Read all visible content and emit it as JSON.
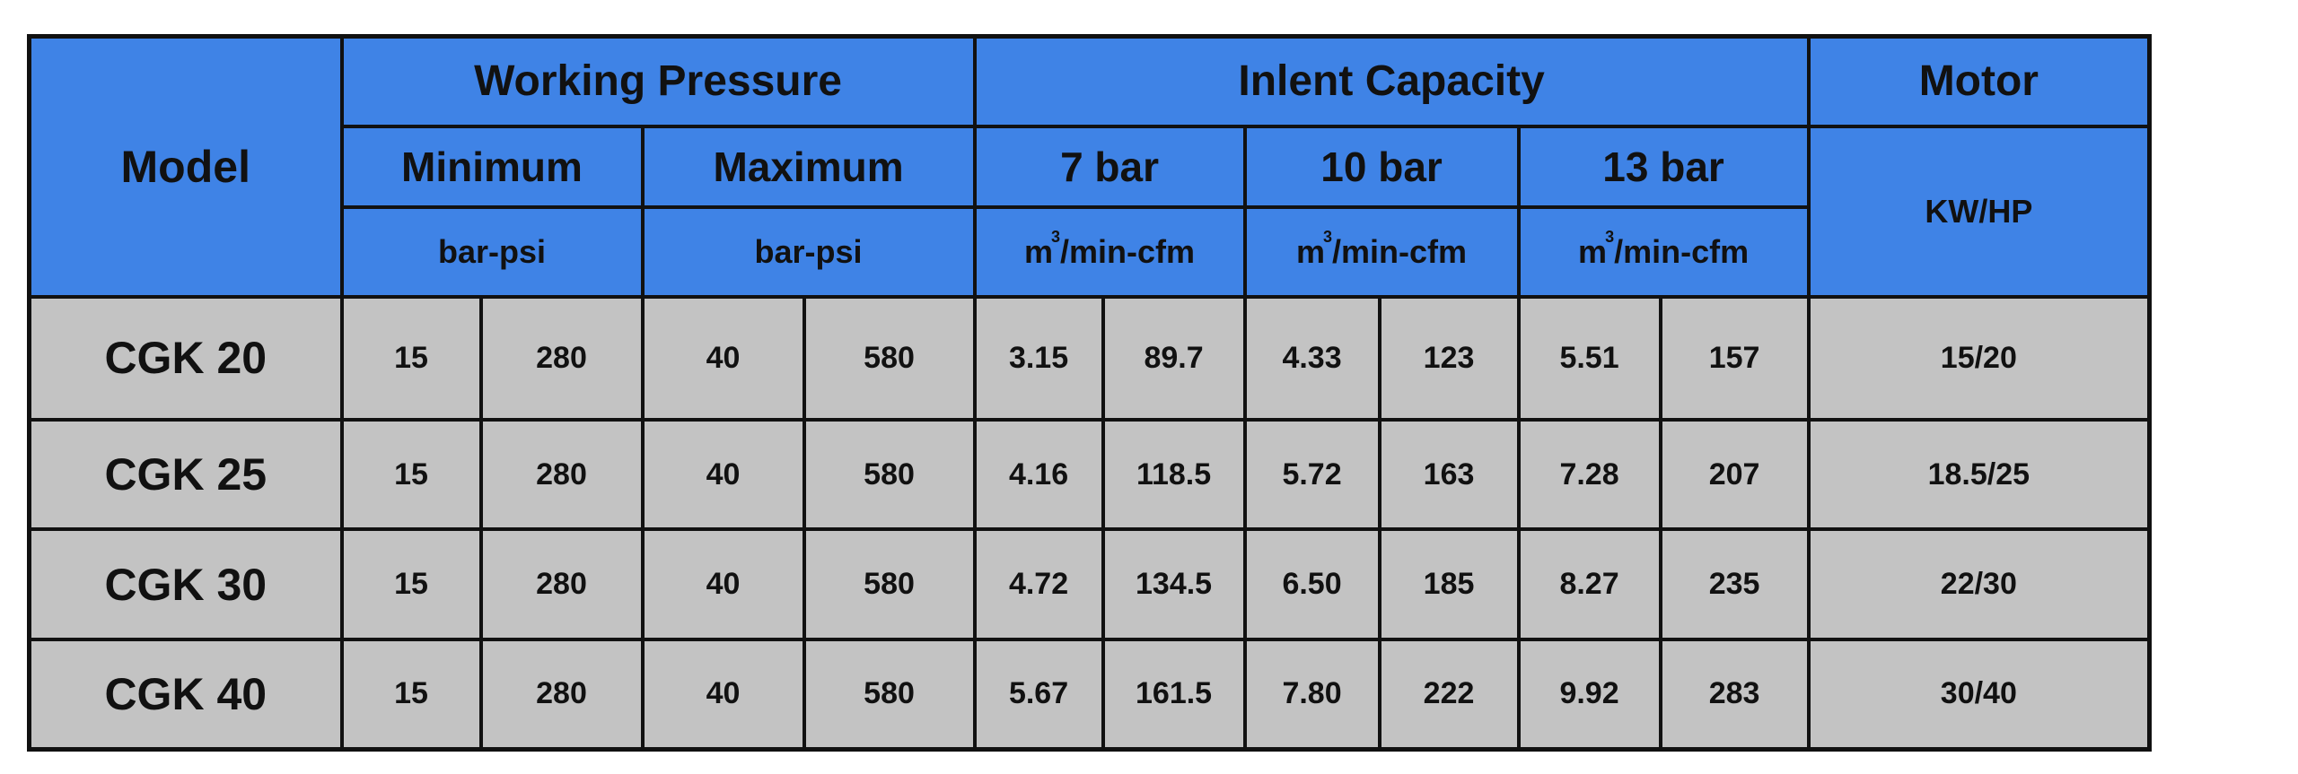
{
  "header": {
    "model": "Model",
    "working_pressure": "Working Pressure",
    "inlet_capacity": "Inlent Capacity",
    "motor": "Motor",
    "minimum": "Minimum",
    "maximum": "Maximum",
    "bar7": "7 bar",
    "bar10": "10 bar",
    "bar13": "13 bar",
    "pressure_unit": "bar-psi",
    "capacity_unit_prefix": "m",
    "capacity_unit_sup": "3",
    "capacity_unit_suffix": "/min-cfm",
    "motor_unit": "KW/HP"
  },
  "rows": [
    {
      "model": "CGK 20",
      "min_bar": "15",
      "min_psi": "280",
      "max_bar": "40",
      "max_psi": "580",
      "c7_m3": "3.15",
      "c7_cfm": "89.7",
      "c10_m3": "4.33",
      "c10_cfm": "123",
      "c13_m3": "5.51",
      "c13_cfm": "157",
      "motor": "15/20"
    },
    {
      "model": "CGK 25",
      "min_bar": "15",
      "min_psi": "280",
      "max_bar": "40",
      "max_psi": "580",
      "c7_m3": "4.16",
      "c7_cfm": "118.5",
      "c10_m3": "5.72",
      "c10_cfm": "163",
      "c13_m3": "7.28",
      "c13_cfm": "207",
      "motor": "18.5/25"
    },
    {
      "model": "CGK 30",
      "min_bar": "15",
      "min_psi": "280",
      "max_bar": "40",
      "max_psi": "580",
      "c7_m3": "4.72",
      "c7_cfm": "134.5",
      "c10_m3": "6.50",
      "c10_cfm": "185",
      "c13_m3": "8.27",
      "c13_cfm": "235",
      "motor": "22/30"
    },
    {
      "model": "CGK 40",
      "min_bar": "15",
      "min_psi": "280",
      "max_bar": "40",
      "max_psi": "580",
      "c7_m3": "5.67",
      "c7_cfm": "161.5",
      "c10_m3": "7.80",
      "c10_cfm": "222",
      "c13_m3": "9.92",
      "c13_cfm": "283",
      "motor": "30/40"
    }
  ],
  "colors": {
    "header_bg": "#3f83e6",
    "body_bg": "#c3c3c3",
    "border": "#111111"
  }
}
